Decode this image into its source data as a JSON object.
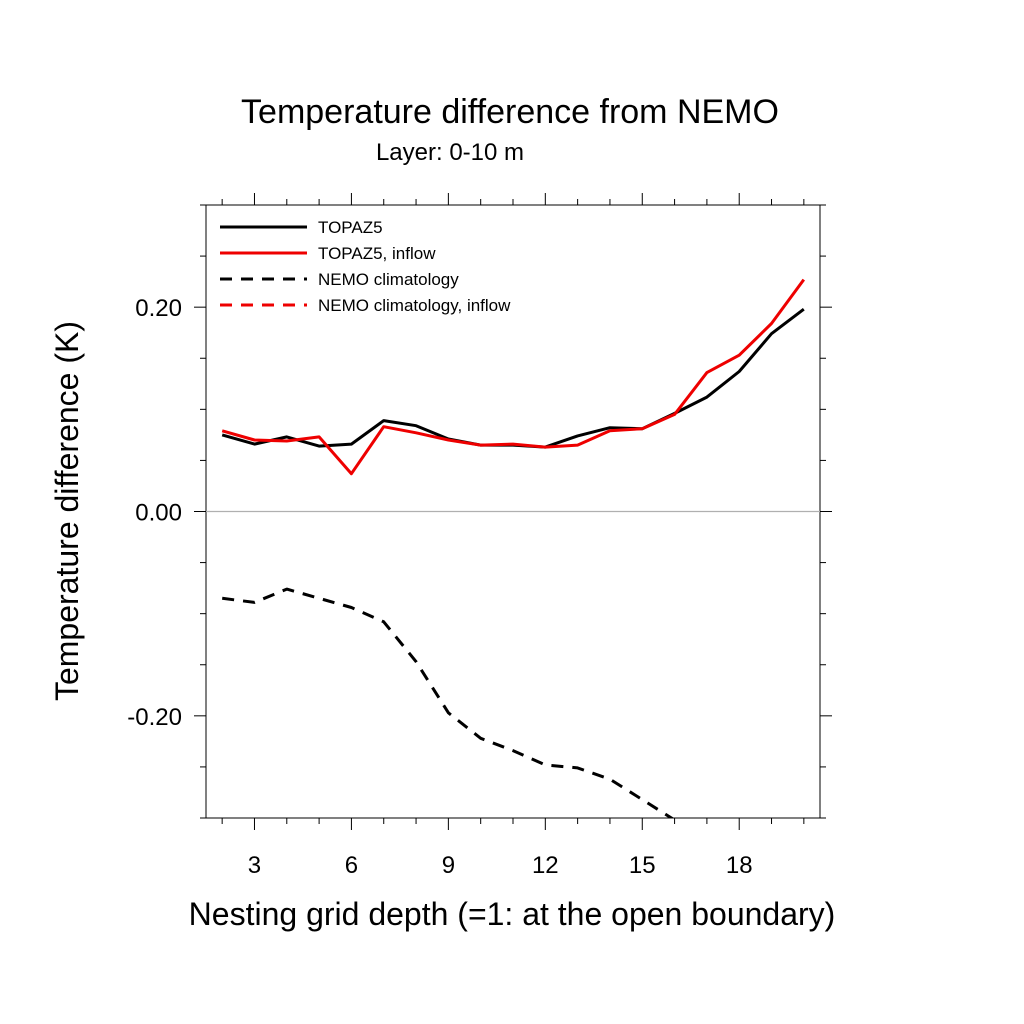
{
  "chart_data": {
    "type": "line",
    "title": "Temperature difference from NEMO",
    "subtitle": "Layer: 0-10 m",
    "xlabel": "Nesting grid depth (=1: at the open boundary)",
    "ylabel": "Temperature difference (K)",
    "xlim": [
      1.5,
      20.5
    ],
    "ylim": [
      -0.3,
      0.3
    ],
    "x_ticks": [
      3,
      6,
      9,
      12,
      15,
      18
    ],
    "x_tick_labels": [
      "3",
      "6",
      "9",
      "12",
      "15",
      "18"
    ],
    "y_ticks": [
      -0.2,
      0.0,
      0.2
    ],
    "y_tick_labels": [
      "-0.20",
      "0.00",
      "0.20"
    ],
    "x": [
      2,
      3,
      4,
      5,
      6,
      7,
      8,
      9,
      10,
      11,
      12,
      13,
      14,
      15,
      16,
      17,
      18,
      19,
      20
    ],
    "series": [
      {
        "name": "TOPAZ5",
        "color": "#000000",
        "dash": "solid",
        "values": [
          0.075,
          0.066,
          0.073,
          0.064,
          0.066,
          0.089,
          0.084,
          0.071,
          0.065,
          0.065,
          0.063,
          0.074,
          0.082,
          0.081,
          0.096,
          0.112,
          0.137,
          0.174,
          0.198
        ]
      },
      {
        "name": "TOPAZ5, inflow",
        "color": "#ee0000",
        "dash": "solid",
        "values": [
          0.079,
          0.07,
          0.069,
          0.073,
          0.037,
          0.083,
          0.077,
          0.07,
          0.065,
          0.066,
          0.063,
          0.065,
          0.079,
          0.081,
          0.095,
          0.136,
          0.153,
          0.184,
          0.227
        ]
      },
      {
        "name": "NEMO climatology",
        "color": "#000000",
        "dash": "dashed",
        "values": [
          -0.085,
          -0.089,
          -0.076,
          -0.085,
          -0.094,
          -0.108,
          -0.147,
          -0.197,
          -0.222,
          -0.234,
          -0.248,
          -0.251,
          -0.262,
          -0.282,
          -0.302,
          null,
          null,
          null,
          null
        ]
      },
      {
        "name": "NEMO climatology, inflow",
        "color": "#ee0000",
        "dash": "dashed",
        "values": [
          null,
          null,
          null,
          null,
          null,
          null,
          null,
          null,
          null,
          null,
          null,
          null,
          null,
          null,
          null,
          null,
          null,
          null,
          null
        ]
      }
    ],
    "legend_position": "top-left",
    "zero_line": true,
    "grid": false
  }
}
